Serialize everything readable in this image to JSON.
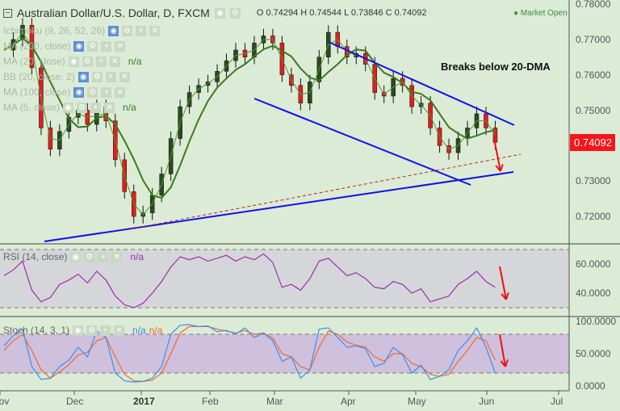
{
  "header": {
    "symbol_title": "Australian Dollar/U.S. Dollar, D, FXCM",
    "ohlc": "O 0.74294 H 0.74544 L 0.73846 C 0.74092",
    "market_status": "Market Open"
  },
  "indicators": [
    {
      "label": "Ichimoku (9, 26, 52, 26)",
      "value": ""
    },
    {
      "label": "MA (200, close)",
      "value": ""
    },
    {
      "label": "MA (20, close)",
      "value": "n/a"
    },
    {
      "label": "BB (20, close, 2)",
      "value": ""
    },
    {
      "label": "MA (100, close)",
      "value": ""
    },
    {
      "label": "MA (5, close)",
      "value": "n/a"
    }
  ],
  "rsi_legend": {
    "label": "RSI (14, close)",
    "value": "n/a"
  },
  "stoch_legend": {
    "label": "Stoch (14, 3, 1)",
    "value_k": "n/a",
    "value_d": "n/a"
  },
  "annotation": "Breaks below 20-DMA",
  "last_price": "0.74092",
  "colors": {
    "background": "#dcebd5",
    "ma20": "#3a7a1e",
    "ma5": "#4f9a2f",
    "trendline": "#1010ee",
    "arrow": "#ee1111",
    "rsi": "#9b2fae",
    "stoch_k": "#3a8ff0",
    "stoch_d": "#f06a2a",
    "last_price": "#f5151a"
  },
  "chart_data": {
    "type": "candlestick",
    "price_axis": {
      "ticks": [
        "0.78000",
        "0.77000",
        "0.76000",
        "0.75000",
        "0.73000",
        "0.72000"
      ],
      "range": [
        0.713,
        0.781
      ]
    },
    "rsi_axis": {
      "ticks": [
        "60.0000",
        "40.0000"
      ],
      "bands": [
        70,
        30
      ]
    },
    "stoch_axis": {
      "ticks": [
        "100.0000",
        "50.0000",
        "0.0000"
      ],
      "bands": [
        80,
        20
      ]
    },
    "x_ticks": [
      "Nov",
      "Dec",
      "2017",
      "Feb",
      "Mar",
      "Apr",
      "May",
      "Jun",
      "Jul"
    ],
    "dates": [
      "2016-11-01",
      "2016-11-05",
      "2016-11-09",
      "2016-11-13",
      "2016-11-17",
      "2016-11-21",
      "2016-11-25",
      "2016-11-29",
      "2016-12-03",
      "2016-12-07",
      "2016-12-11",
      "2016-12-15",
      "2016-12-19",
      "2016-12-23",
      "2016-12-27",
      "2016-12-31",
      "2017-01-04",
      "2017-01-08",
      "2017-01-12",
      "2017-01-16",
      "2017-01-20",
      "2017-01-24",
      "2017-01-28",
      "2017-02-01",
      "2017-02-05",
      "2017-02-09",
      "2017-02-13",
      "2017-02-17",
      "2017-02-21",
      "2017-02-25",
      "2017-03-01",
      "2017-03-05",
      "2017-03-09",
      "2017-03-13",
      "2017-03-17",
      "2017-03-21",
      "2017-03-25",
      "2017-03-29",
      "2017-04-02",
      "2017-04-06",
      "2017-04-10",
      "2017-04-14",
      "2017-04-18",
      "2017-04-22",
      "2017-04-26",
      "2017-04-30",
      "2017-05-04",
      "2017-05-08",
      "2017-05-12",
      "2017-05-16",
      "2017-05-20",
      "2017-05-24",
      "2017-05-28",
      "2017-06-01"
    ],
    "close": [
      0.767,
      0.77,
      0.774,
      0.762,
      0.745,
      0.739,
      0.744,
      0.748,
      0.75,
      0.746,
      0.751,
      0.747,
      0.736,
      0.727,
      0.72,
      0.721,
      0.726,
      0.732,
      0.742,
      0.751,
      0.755,
      0.757,
      0.758,
      0.761,
      0.764,
      0.767,
      0.765,
      0.769,
      0.771,
      0.769,
      0.76,
      0.757,
      0.752,
      0.758,
      0.765,
      0.772,
      0.768,
      0.765,
      0.766,
      0.763,
      0.755,
      0.754,
      0.759,
      0.757,
      0.751,
      0.752,
      0.745,
      0.74,
      0.738,
      0.742,
      0.745,
      0.749,
      0.745,
      0.7409
    ],
    "rsi": [
      52,
      56,
      62,
      42,
      34,
      37,
      46,
      49,
      53,
      47,
      55,
      49,
      38,
      32,
      30,
      33,
      40,
      48,
      58,
      65,
      63,
      65,
      62,
      64,
      66,
      62,
      65,
      63,
      67,
      61,
      44,
      46,
      42,
      50,
      62,
      64,
      58,
      52,
      54,
      50,
      44,
      43,
      48,
      46,
      40,
      43,
      34,
      36,
      38,
      46,
      50,
      55,
      48,
      44
    ],
    "stoch_k": [
      62,
      78,
      88,
      30,
      10,
      12,
      30,
      40,
      60,
      45,
      85,
      75,
      20,
      8,
      6,
      7,
      12,
      30,
      80,
      94,
      95,
      92,
      93,
      84,
      86,
      80,
      90,
      75,
      82,
      70,
      38,
      45,
      12,
      25,
      88,
      90,
      75,
      60,
      62,
      58,
      30,
      35,
      60,
      48,
      20,
      32,
      10,
      15,
      25,
      55,
      70,
      90,
      60,
      20
    ],
    "stoch_d": [
      55,
      70,
      80,
      55,
      25,
      12,
      22,
      33,
      48,
      52,
      70,
      75,
      45,
      18,
      8,
      7,
      9,
      20,
      50,
      82,
      92,
      92,
      92,
      88,
      85,
      82,
      86,
      80,
      82,
      74,
      50,
      45,
      30,
      25,
      60,
      85,
      80,
      68,
      63,
      60,
      45,
      38,
      50,
      50,
      35,
      30,
      18,
      15,
      18,
      38,
      55,
      75,
      70,
      40
    ]
  }
}
